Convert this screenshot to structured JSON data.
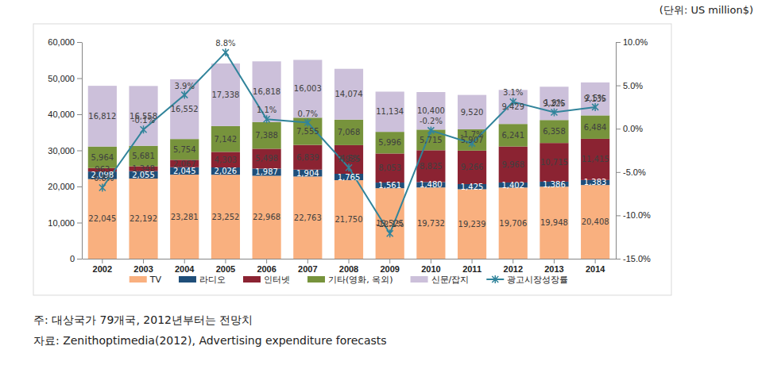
{
  "chart_data": {
    "type": "bar",
    "stacked": true,
    "data_labels": true,
    "legend": "bottom",
    "annotations": [
      "(단위: US million$)",
      "주: 대상국가 79개국, 2012년부터는 전망치",
      "자료: Zenithoptimedia(2012), Advertising expenditure forecasts"
    ],
    "categories": [
      "2002",
      "2003",
      "2004",
      "2005",
      "2006",
      "2007",
      "2008",
      "2009",
      "2010",
      "2011",
      "2012",
      "2013",
      "2014"
    ],
    "ylim": [
      0,
      60000
    ],
    "yticks": [
      0,
      {
        "value": 10000,
        "label": "10,000"
      },
      {
        "value": 20000,
        "label": "20,000"
      },
      {
        "value": 30000,
        "label": "30,000"
      },
      {
        "value": 40000,
        "label": "40,000"
      },
      {
        "value": 50000,
        "label": "50,000"
      },
      {
        "value": 60000,
        "label": "60,000"
      }
    ],
    "y2lim": [
      -15,
      10
    ],
    "y2ticks": [
      {
        "value": -15,
        "label": "-15.0%"
      },
      {
        "value": -10,
        "label": "-10.0%"
      },
      {
        "value": -5,
        "label": "-5.0%"
      },
      {
        "value": 0,
        "label": "0.0%"
      },
      {
        "value": 5,
        "label": "5.0%"
      },
      {
        "value": 10,
        "label": "10.0%"
      }
    ],
    "series": [
      {
        "name": "TV",
        "type": "bar",
        "color": "#f9b07f",
        "values": [
          22045,
          22192,
          23281,
          23252,
          22968,
          22763,
          21750,
          19525,
          19732,
          19239,
          19706,
          19948,
          20408
        ],
        "value_labels": [
          "22,045",
          "22,192",
          "23,281",
          "23,252",
          "22,968",
          "22,763",
          "21,750",
          "19,525",
          "19,732",
          "19,239",
          "19,706",
          "19,948",
          "20,408"
        ]
      },
      {
        "name": "라디오",
        "type": "bar",
        "color": "#1f4e79",
        "values": [
          2098,
          2055,
          2045,
          2026,
          1987,
          1904,
          1765,
          1561,
          1480,
          1425,
          1402,
          1386,
          1383
        ],
        "value_labels": [
          "2,098",
          "2,055",
          "2,045",
          "2,026",
          "1,987",
          "1,904",
          "1,765",
          "1,561",
          "1,480",
          "1,425",
          "1,402",
          "1,386",
          "1,383"
        ]
      },
      {
        "name": "인터넷",
        "type": "bar",
        "color": "#8b2332",
        "values": [
          963,
          1348,
          2067,
          4303,
          5498,
          6839,
          7935,
          8053,
          8825,
          9266,
          9968,
          10715,
          11415
        ],
        "value_labels": [
          "963",
          "1,348",
          "2,067",
          "4,303",
          "5,498",
          "6,839",
          "7,935",
          "8,053",
          "8,825",
          "9,266",
          "9,968",
          "10,715",
          "11,415"
        ]
      },
      {
        "name": "기타(영화, 옥외)",
        "type": "bar",
        "color": "#77933c",
        "values": [
          5964,
          5681,
          5754,
          7142,
          7388,
          7555,
          7068,
          5996,
          5715,
          5907,
          6241,
          6358,
          6484
        ],
        "value_labels": [
          "5,964",
          "5,681",
          "5,754",
          "7,142",
          "7,388",
          "7,555",
          "7,068",
          "5,996",
          "5,715",
          "5,907",
          "6,241",
          "6,358",
          "6,484"
        ]
      },
      {
        "name": "신문/잡지",
        "type": "bar",
        "color": "#ccc0da",
        "values": [
          16812,
          16558,
          16552,
          17338,
          16818,
          16003,
          14074,
          11134,
          10400,
          9520,
          9429,
          9225,
          9135
        ],
        "value_labels": [
          "16,812",
          "16,558",
          "16,552",
          "17,338",
          "16,818",
          "16,003",
          "14,074",
          "11,134",
          "10,400",
          "9,520",
          "9,429",
          "9,225",
          "9,135"
        ]
      },
      {
        "name": "광고시장성장률",
        "type": "line",
        "axis": "y2",
        "color": "#31849b",
        "marker": "x",
        "values": [
          -6.8,
          -0.1,
          3.9,
          8.8,
          1.1,
          0.7,
          -4.5,
          -12.1,
          -0.2,
          -1.7,
          3.1,
          1.9,
          2.5
        ],
        "value_labels": [
          "-6.8%",
          "-0.1%",
          "3.9%",
          "8.8%",
          "1.1%",
          "0.7%",
          "-4.5%",
          "-12.1%",
          "-0.2%",
          "-1.7%",
          "3.1%",
          "1.9%",
          "2.5%"
        ]
      }
    ]
  }
}
